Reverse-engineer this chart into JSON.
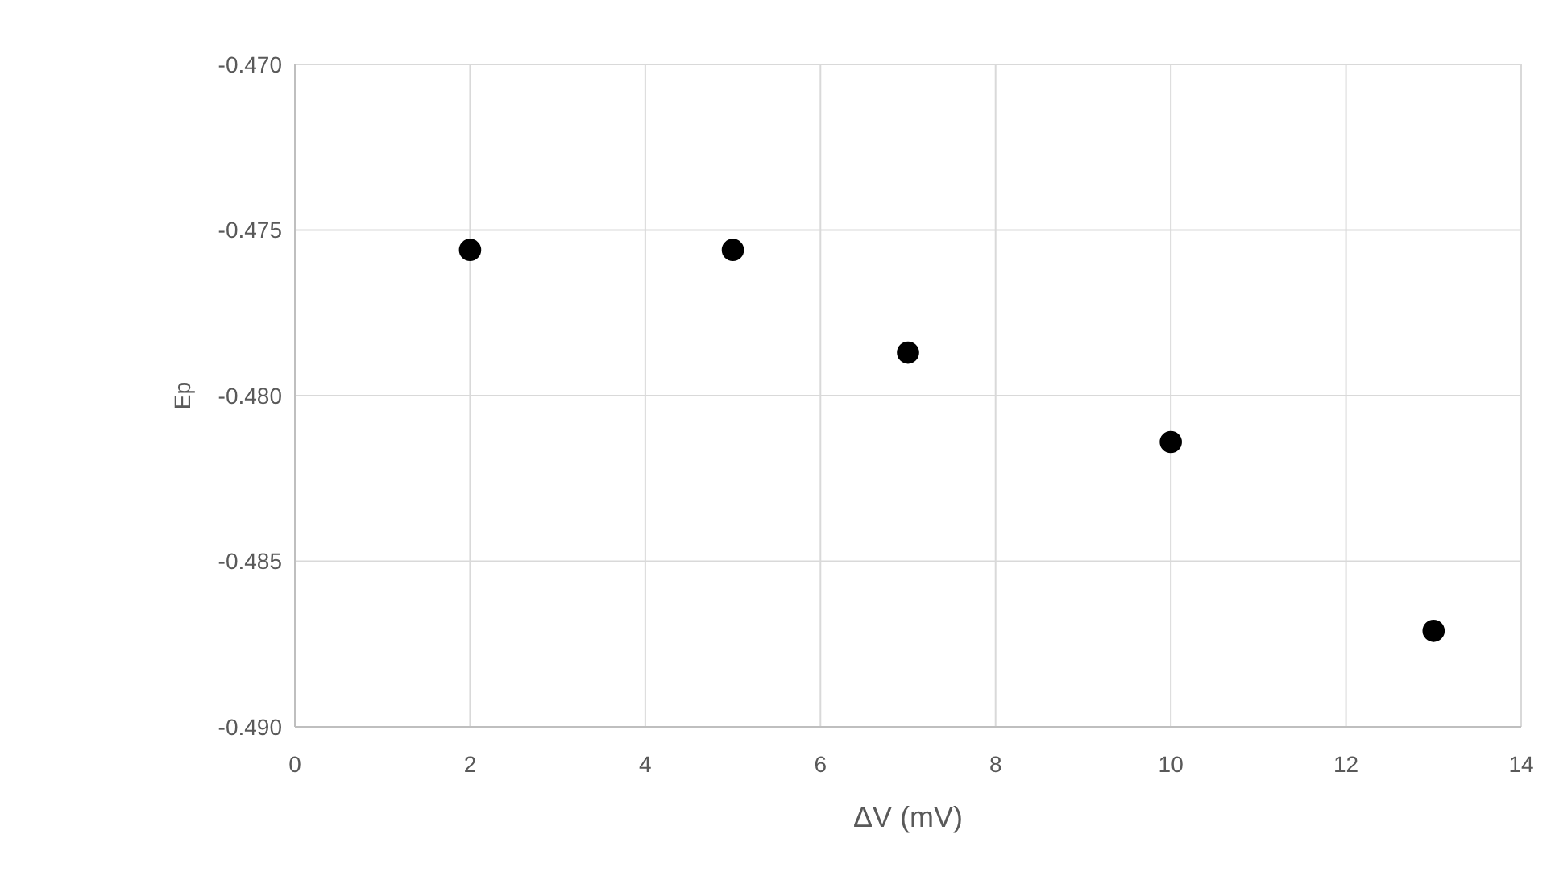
{
  "chart_data": {
    "type": "scatter",
    "xlabel": "ΔV (mV)",
    "ylabel": "Ep",
    "x": [
      2,
      5,
      7,
      10,
      13
    ],
    "series": [
      {
        "color": "#000000",
        "values": [
          -0.4756,
          -0.4756,
          -0.4787,
          -0.4814,
          -0.4871
        ]
      }
    ],
    "xlim": [
      0,
      14
    ],
    "xticks": [
      0,
      2,
      4,
      6,
      8,
      10,
      12,
      14
    ],
    "ylim": [
      -0.49,
      -0.47
    ],
    "yticks": [
      {
        "value": -0.49,
        "label": "-0.490"
      },
      {
        "value": -0.485,
        "label": "-0.485"
      },
      {
        "value": -0.48,
        "label": "-0.480"
      },
      {
        "value": -0.475,
        "label": "-0.475"
      },
      {
        "value": -0.47,
        "label": "-0.470"
      }
    ],
    "grid": true,
    "marker": "circle"
  }
}
